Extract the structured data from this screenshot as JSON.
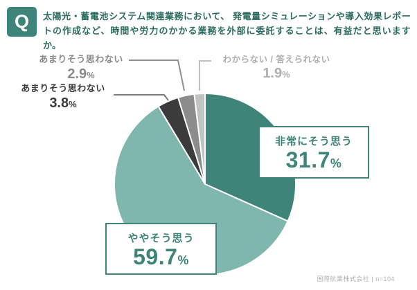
{
  "header": {
    "badge": "Q",
    "question": "太陽光・蓄電池システム関連業務において、 発電量シミュレーションや導入効果レポートの作成など、時間や労力のかかる業務を外部に委託することは、有益だと思いますか。"
  },
  "chart_data": {
    "type": "pie",
    "title": "太陽光・蓄電池システム関連業務において、発電量シミュレーションや導入効果レポートの作成など、時間や労力のかかる業務を外部に委託することは、有益だと思いますか。",
    "percent_sign": "%",
    "start_angle_deg": 0,
    "direction": "clockwise",
    "legend_position": "callouts",
    "segments": [
      {
        "label": "非常にそう思う",
        "value": 31.7,
        "value_label": "31.7",
        "color": "#3E8478",
        "callout": "box"
      },
      {
        "label": "ややそう思う",
        "value": 59.7,
        "value_label": "59.7",
        "color": "#7FB7AE",
        "callout": "box"
      },
      {
        "label": "あまりそう思わない",
        "value": 3.8,
        "value_label": "3.8",
        "color": "#3B3B3B",
        "callout": "leader"
      },
      {
        "label": "あまりそう思わない",
        "value": 2.9,
        "value_label": "2.9",
        "color": "#8C8C8C",
        "callout": "leader"
      },
      {
        "label": "わからない / 答えられない",
        "value": 1.9,
        "value_label": "1.9",
        "color": "#C2C2C2",
        "callout": "leader"
      }
    ]
  },
  "footer": {
    "source_note": "国際航業株式会社 | n=104"
  },
  "colors": {
    "accent_teal": "#3E8478",
    "light_teal": "#7FB7AE",
    "dark_gray": "#3B3B3B",
    "mid_gray": "#8C8C8C",
    "light_gray": "#C2C2C2",
    "question_text": "#2C6B60",
    "background": "#FFFFFF"
  }
}
